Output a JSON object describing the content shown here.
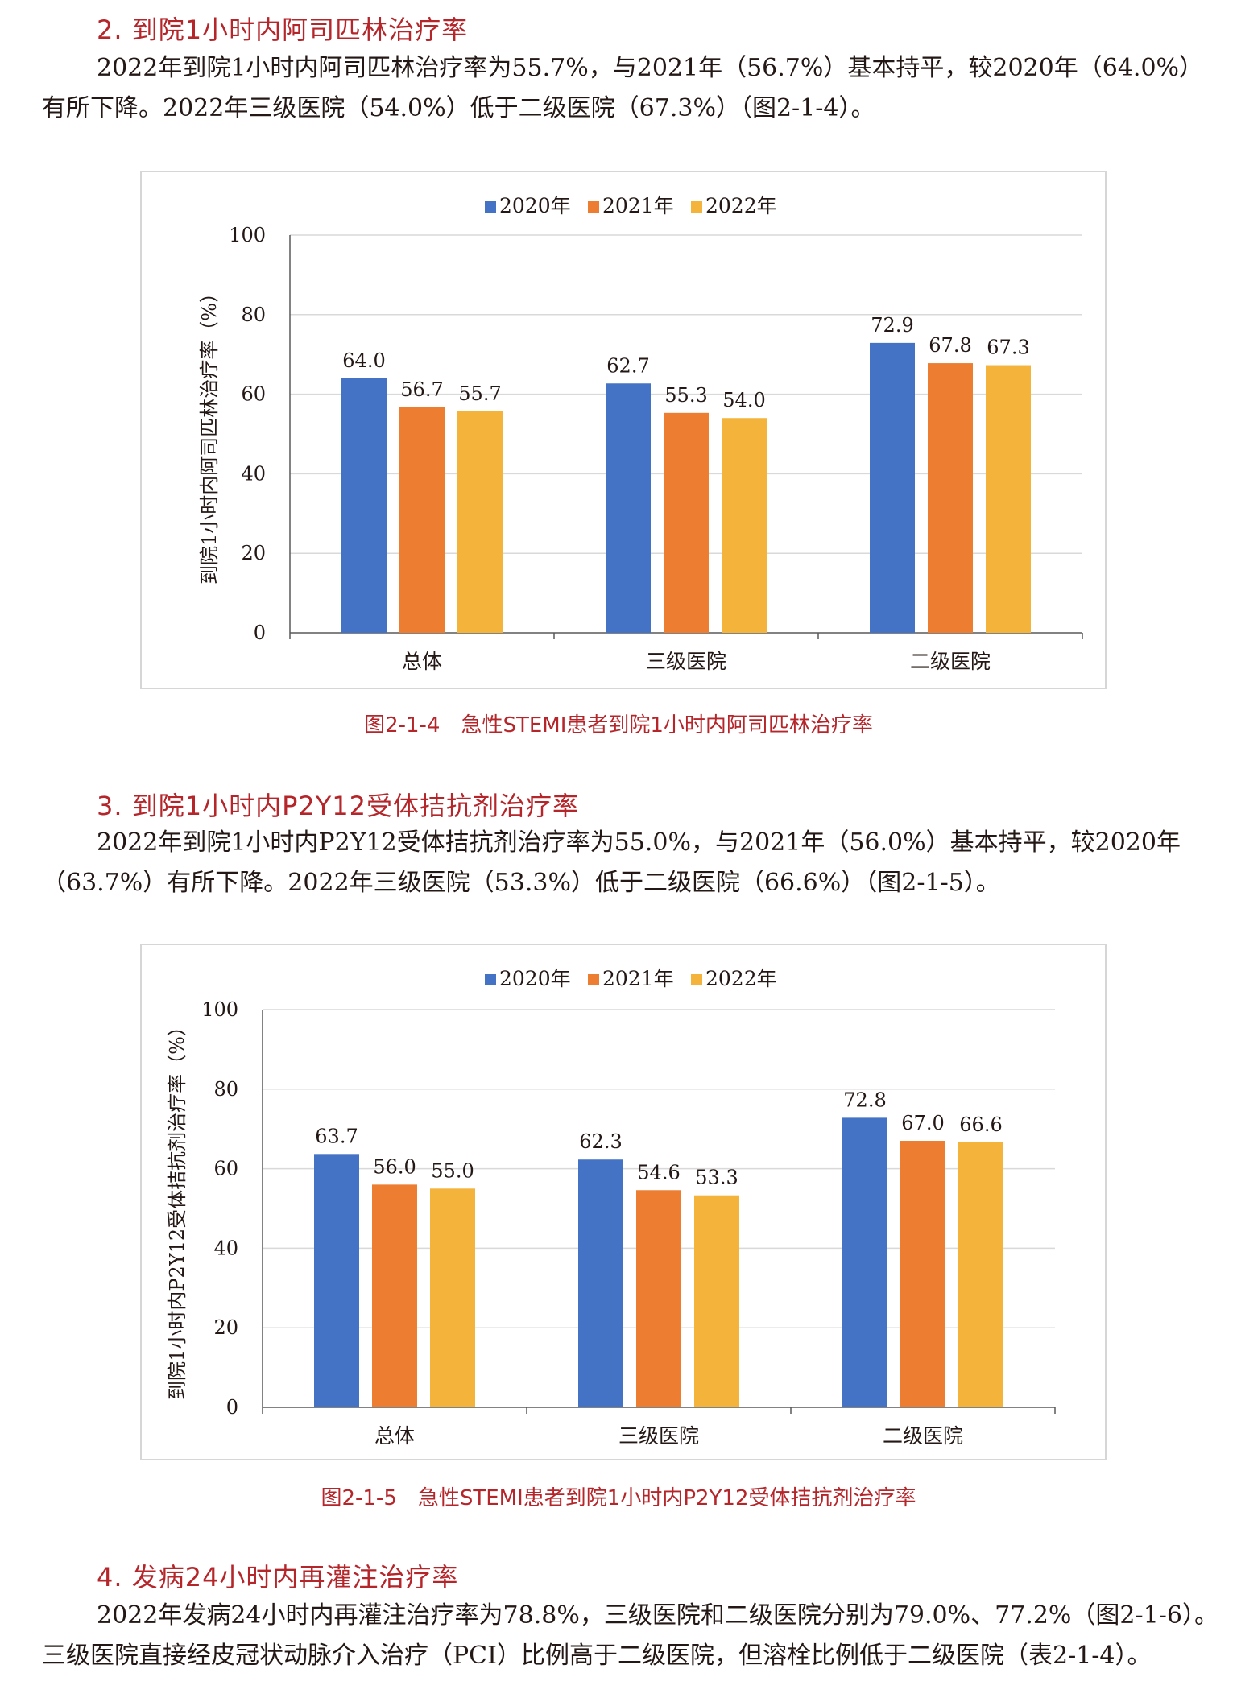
{
  "sections": [
    {
      "heading": "2. 到院1小时内阿司匹林治疗率",
      "lines": [
        "2022年到院1小时内阿司匹林治疗率为55.7%，与2021年（56.7%）基本持平，较2020年（64.0%）",
        "有所下降。2022年三级医院（54.0%）低于二级医院（67.3%）（图2-1-4）。"
      ]
    },
    {
      "heading": "3. 到院1小时内P2Y12受体拮抗剂治疗率",
      "lines": [
        "2022年到院1小时内P2Y12受体拮抗剂治疗率为55.0%，与2021年（56.0%）基本持平，较2020年",
        "（63.7%）有所下降。2022年三级医院（53.3%）低于二级医院（66.6%）（图2-1-5）。"
      ]
    },
    {
      "heading": "4. 发病24小时内再灌注治疗率",
      "lines": [
        "2022年发病24小时内再灌注治疗率为78.8%，三级医院和二级医院分别为79.0%、77.2%（图2-1-6）。",
        "三级医院直接经皮冠状动脉介入治疗（PCI）比例高于二级医院，但溶栓比例低于二级医院（表2-1-4）。"
      ]
    }
  ],
  "captions": {
    "fig1": "图2-1-4　急性STEMI患者到院1小时内阿司匹林治疗率",
    "fig2": "图2-1-5　急性STEMI患者到院1小时内P2Y12受体拮抗剂治疗率"
  },
  "colors": {
    "2020年": "#4472c4",
    "2021年": "#ed7d31",
    "2022年": "#f4b43c"
  },
  "chart_data": [
    {
      "type": "bar",
      "categories": [
        "总体",
        "三级医院",
        "二级医院"
      ],
      "series": [
        {
          "name": "2020年",
          "values": [
            64.0,
            62.7,
            72.9
          ]
        },
        {
          "name": "2021年",
          "values": [
            56.7,
            55.3,
            67.8
          ]
        },
        {
          "name": "2022年",
          "values": [
            55.7,
            54.0,
            67.3
          ]
        }
      ],
      "ylabel": "到院1小时内阿司匹林治疗率（%）",
      "ylim": [
        0,
        100
      ],
      "yticks": [
        0,
        20,
        40,
        60,
        80,
        100
      ],
      "grid": true,
      "legend": "top-center"
    },
    {
      "type": "bar",
      "categories": [
        "总体",
        "三级医院",
        "二级医院"
      ],
      "series": [
        {
          "name": "2020年",
          "values": [
            63.7,
            62.3,
            72.8
          ]
        },
        {
          "name": "2021年",
          "values": [
            56.0,
            54.6,
            67.0
          ]
        },
        {
          "name": "2022年",
          "values": [
            55.0,
            53.3,
            66.6
          ]
        }
      ],
      "ylabel": "到院1小时内P2Y12受体拮抗剂治疗率（%）",
      "ylim": [
        0,
        100
      ],
      "yticks": [
        0,
        20,
        40,
        60,
        80,
        100
      ],
      "grid": true,
      "legend": "top-center"
    }
  ]
}
